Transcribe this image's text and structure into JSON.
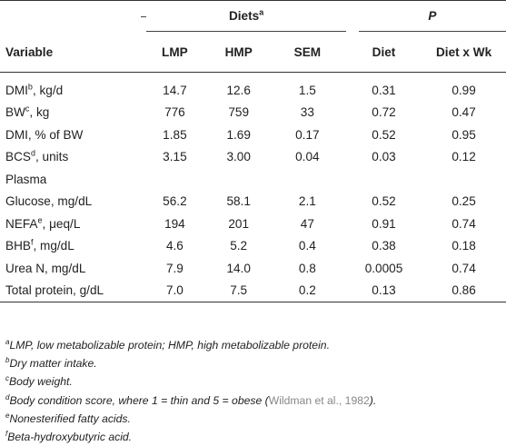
{
  "header": {
    "diets_group": "Diets",
    "diets_sup": "a",
    "p_group": "P",
    "columns": [
      "Variable",
      "LMP",
      "HMP",
      "SEM",
      "Diet",
      "Diet x Wk"
    ]
  },
  "rows": [
    {
      "label": "DMI",
      "sup": "b",
      "suffix": ", kg/d",
      "values": [
        "14.7",
        "12.6",
        "1.5",
        "0.31",
        "0.99"
      ]
    },
    {
      "label": "BW",
      "sup": "c",
      "suffix": ", kg",
      "values": [
        "776",
        "759",
        "33",
        "0.72",
        "0.47"
      ]
    },
    {
      "label": "DMI, % of BW",
      "sup": "",
      "suffix": "",
      "values": [
        "1.85",
        "1.69",
        "0.17",
        "0.52",
        "0.95"
      ]
    },
    {
      "label": "BCS",
      "sup": "d",
      "suffix": ", units",
      "values": [
        "3.15",
        "3.00",
        "0.04",
        "0.03",
        "0.12"
      ]
    },
    {
      "label": "Plasma",
      "sup": "",
      "suffix": "",
      "values": [
        "",
        "",
        "",
        "",
        ""
      ]
    },
    {
      "label": "Glucose, mg/dL",
      "sup": "",
      "suffix": "",
      "values": [
        "56.2",
        "58.1",
        "2.1",
        "0.52",
        "0.25"
      ]
    },
    {
      "label": "NEFA",
      "sup": "e",
      "suffix": ", μeq/L",
      "values": [
        "194",
        "201",
        "47",
        "0.91",
        "0.74"
      ]
    },
    {
      "label": "BHB",
      "sup": "f",
      "suffix": ", mg/dL",
      "values": [
        "4.6",
        "5.2",
        "0.4",
        "0.38",
        "0.18"
      ]
    },
    {
      "label": "Urea N, mg/dL",
      "sup": "",
      "suffix": "",
      "values": [
        "7.9",
        "14.0",
        "0.8",
        "0.0005",
        "0.74"
      ]
    },
    {
      "label": "Total protein, g/dL",
      "sup": "",
      "suffix": "",
      "values": [
        "7.0",
        "7.5",
        "0.2",
        "0.13",
        "0.86"
      ]
    }
  ],
  "footnotes": [
    {
      "sup": "a",
      "text": "LMP, low metabolizable protein; HMP, high metabolizable protein.",
      "cite": ""
    },
    {
      "sup": "b",
      "text": "Dry matter intake.",
      "cite": ""
    },
    {
      "sup": "c",
      "text": "Body weight.",
      "cite": ""
    },
    {
      "sup": "d",
      "text": "Body condition score, where 1 = thin and 5 = obese (",
      "cite": "Wildman et al., 1982",
      "after": ")."
    },
    {
      "sup": "e",
      "text": "Nonesterified fatty acids.",
      "cite": ""
    },
    {
      "sup": "f",
      "text": "Beta-hydroxybutyric acid.",
      "cite": ""
    }
  ]
}
